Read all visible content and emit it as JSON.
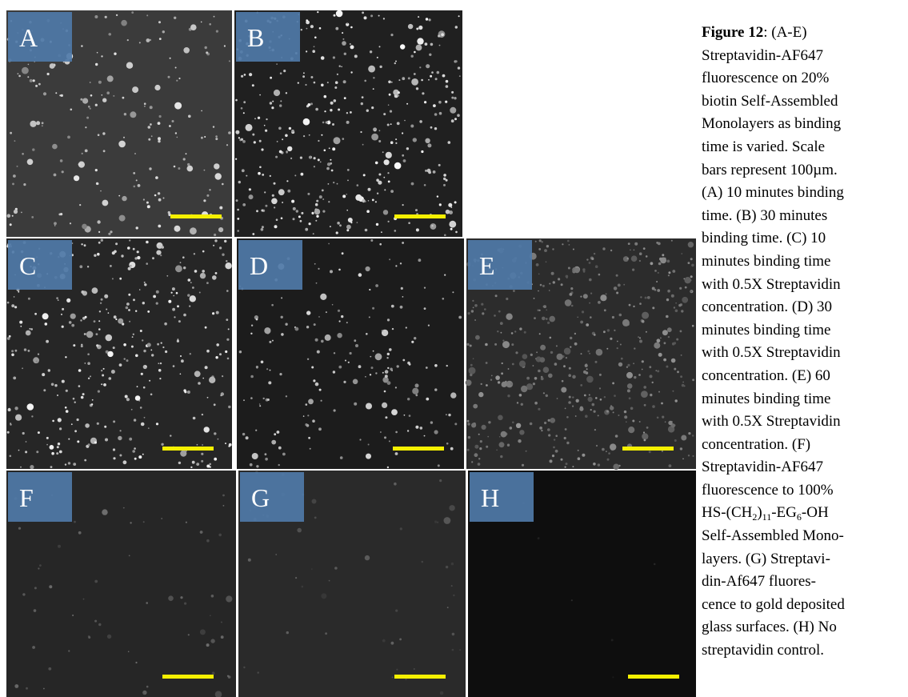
{
  "panels": [
    {
      "label": "A"
    },
    {
      "label": "B"
    },
    {
      "label": "C"
    },
    {
      "label": "D"
    },
    {
      "label": "E"
    },
    {
      "label": "F"
    },
    {
      "label": "G"
    },
    {
      "label": "H"
    }
  ],
  "caption": {
    "title": "Figure 12",
    "lines": [
      [
        ": (A-E)"
      ],
      [
        "Streptavidin-AF647"
      ],
      [
        "fluorescence on 20%"
      ],
      [
        "biotin Self-Assembled"
      ],
      [
        "Monolayers as binding"
      ],
      [
        "time is varied. Scale"
      ],
      [
        "bars represent 100µm."
      ],
      [
        "(A) 10 minutes binding"
      ],
      [
        "time. (B) 30 minutes"
      ],
      [
        "binding time. (C) 10"
      ],
      [
        "minutes binding time"
      ],
      [
        "with 0.5X Streptavidin"
      ],
      [
        "concentration. (D) 30"
      ],
      [
        "minutes binding time"
      ],
      [
        "with 0.5X Streptavidin"
      ],
      [
        "concentration. (E) 60"
      ],
      [
        "minutes binding time"
      ],
      [
        "with 0.5X Streptavidin"
      ],
      [
        "concentration. (F)"
      ],
      [
        "Streptavidin-AF647"
      ],
      [
        "fluorescence to 100%"
      ],
      [
        "HS-(CH",
        "2",
        ")",
        "11",
        "-EG",
        "6",
        "-OH"
      ],
      [
        "Self-Assembled Mono-"
      ],
      [
        "layers. (G) Streptavi-"
      ],
      [
        "din-Af647 fluores-"
      ],
      [
        "cence to gold deposited"
      ],
      [
        "glass surfaces. (H) No"
      ],
      [
        "streptavidin control."
      ]
    ]
  }
}
